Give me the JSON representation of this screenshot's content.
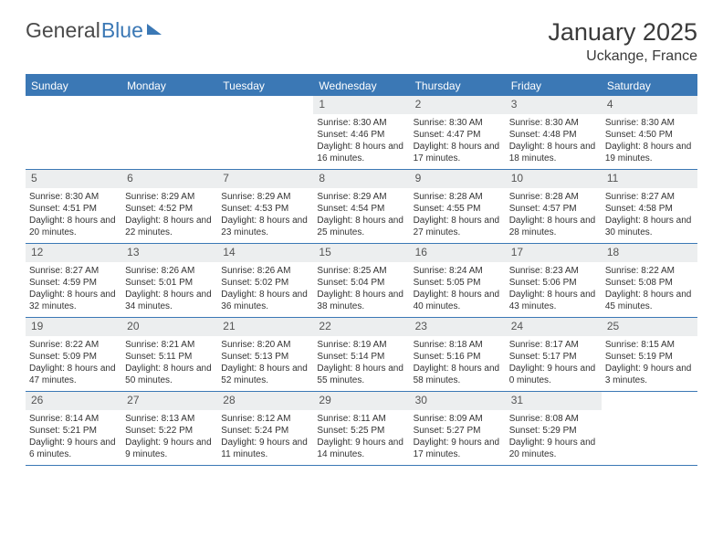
{
  "brand": {
    "part1": "General",
    "part2": "Blue"
  },
  "title": "January 2025",
  "location": "Uckange, France",
  "colors": {
    "accent": "#3b78b5",
    "header_bg": "#3b78b5",
    "header_text": "#ffffff",
    "daynum_bg": "#eceeef",
    "daynum_text": "#555555",
    "body_text": "#333333",
    "page_bg": "#ffffff"
  },
  "fonts": {
    "month_title_size": 27,
    "location_size": 16,
    "dayhead_size": 12,
    "daynum_size": 12,
    "cell_size": 10
  },
  "day_headers": [
    "Sunday",
    "Monday",
    "Tuesday",
    "Wednesday",
    "Thursday",
    "Friday",
    "Saturday"
  ],
  "weeks": [
    [
      {
        "n": "",
        "sunrise": "",
        "sunset": "",
        "daylight": ""
      },
      {
        "n": "",
        "sunrise": "",
        "sunset": "",
        "daylight": ""
      },
      {
        "n": "",
        "sunrise": "",
        "sunset": "",
        "daylight": ""
      },
      {
        "n": "1",
        "sunrise": "Sunrise: 8:30 AM",
        "sunset": "Sunset: 4:46 PM",
        "daylight": "Daylight: 8 hours and 16 minutes."
      },
      {
        "n": "2",
        "sunrise": "Sunrise: 8:30 AM",
        "sunset": "Sunset: 4:47 PM",
        "daylight": "Daylight: 8 hours and 17 minutes."
      },
      {
        "n": "3",
        "sunrise": "Sunrise: 8:30 AM",
        "sunset": "Sunset: 4:48 PM",
        "daylight": "Daylight: 8 hours and 18 minutes."
      },
      {
        "n": "4",
        "sunrise": "Sunrise: 8:30 AM",
        "sunset": "Sunset: 4:50 PM",
        "daylight": "Daylight: 8 hours and 19 minutes."
      }
    ],
    [
      {
        "n": "5",
        "sunrise": "Sunrise: 8:30 AM",
        "sunset": "Sunset: 4:51 PM",
        "daylight": "Daylight: 8 hours and 20 minutes."
      },
      {
        "n": "6",
        "sunrise": "Sunrise: 8:29 AM",
        "sunset": "Sunset: 4:52 PM",
        "daylight": "Daylight: 8 hours and 22 minutes."
      },
      {
        "n": "7",
        "sunrise": "Sunrise: 8:29 AM",
        "sunset": "Sunset: 4:53 PM",
        "daylight": "Daylight: 8 hours and 23 minutes."
      },
      {
        "n": "8",
        "sunrise": "Sunrise: 8:29 AM",
        "sunset": "Sunset: 4:54 PM",
        "daylight": "Daylight: 8 hours and 25 minutes."
      },
      {
        "n": "9",
        "sunrise": "Sunrise: 8:28 AM",
        "sunset": "Sunset: 4:55 PM",
        "daylight": "Daylight: 8 hours and 27 minutes."
      },
      {
        "n": "10",
        "sunrise": "Sunrise: 8:28 AM",
        "sunset": "Sunset: 4:57 PM",
        "daylight": "Daylight: 8 hours and 28 minutes."
      },
      {
        "n": "11",
        "sunrise": "Sunrise: 8:27 AM",
        "sunset": "Sunset: 4:58 PM",
        "daylight": "Daylight: 8 hours and 30 minutes."
      }
    ],
    [
      {
        "n": "12",
        "sunrise": "Sunrise: 8:27 AM",
        "sunset": "Sunset: 4:59 PM",
        "daylight": "Daylight: 8 hours and 32 minutes."
      },
      {
        "n": "13",
        "sunrise": "Sunrise: 8:26 AM",
        "sunset": "Sunset: 5:01 PM",
        "daylight": "Daylight: 8 hours and 34 minutes."
      },
      {
        "n": "14",
        "sunrise": "Sunrise: 8:26 AM",
        "sunset": "Sunset: 5:02 PM",
        "daylight": "Daylight: 8 hours and 36 minutes."
      },
      {
        "n": "15",
        "sunrise": "Sunrise: 8:25 AM",
        "sunset": "Sunset: 5:04 PM",
        "daylight": "Daylight: 8 hours and 38 minutes."
      },
      {
        "n": "16",
        "sunrise": "Sunrise: 8:24 AM",
        "sunset": "Sunset: 5:05 PM",
        "daylight": "Daylight: 8 hours and 40 minutes."
      },
      {
        "n": "17",
        "sunrise": "Sunrise: 8:23 AM",
        "sunset": "Sunset: 5:06 PM",
        "daylight": "Daylight: 8 hours and 43 minutes."
      },
      {
        "n": "18",
        "sunrise": "Sunrise: 8:22 AM",
        "sunset": "Sunset: 5:08 PM",
        "daylight": "Daylight: 8 hours and 45 minutes."
      }
    ],
    [
      {
        "n": "19",
        "sunrise": "Sunrise: 8:22 AM",
        "sunset": "Sunset: 5:09 PM",
        "daylight": "Daylight: 8 hours and 47 minutes."
      },
      {
        "n": "20",
        "sunrise": "Sunrise: 8:21 AM",
        "sunset": "Sunset: 5:11 PM",
        "daylight": "Daylight: 8 hours and 50 minutes."
      },
      {
        "n": "21",
        "sunrise": "Sunrise: 8:20 AM",
        "sunset": "Sunset: 5:13 PM",
        "daylight": "Daylight: 8 hours and 52 minutes."
      },
      {
        "n": "22",
        "sunrise": "Sunrise: 8:19 AM",
        "sunset": "Sunset: 5:14 PM",
        "daylight": "Daylight: 8 hours and 55 minutes."
      },
      {
        "n": "23",
        "sunrise": "Sunrise: 8:18 AM",
        "sunset": "Sunset: 5:16 PM",
        "daylight": "Daylight: 8 hours and 58 minutes."
      },
      {
        "n": "24",
        "sunrise": "Sunrise: 8:17 AM",
        "sunset": "Sunset: 5:17 PM",
        "daylight": "Daylight: 9 hours and 0 minutes."
      },
      {
        "n": "25",
        "sunrise": "Sunrise: 8:15 AM",
        "sunset": "Sunset: 5:19 PM",
        "daylight": "Daylight: 9 hours and 3 minutes."
      }
    ],
    [
      {
        "n": "26",
        "sunrise": "Sunrise: 8:14 AM",
        "sunset": "Sunset: 5:21 PM",
        "daylight": "Daylight: 9 hours and 6 minutes."
      },
      {
        "n": "27",
        "sunrise": "Sunrise: 8:13 AM",
        "sunset": "Sunset: 5:22 PM",
        "daylight": "Daylight: 9 hours and 9 minutes."
      },
      {
        "n": "28",
        "sunrise": "Sunrise: 8:12 AM",
        "sunset": "Sunset: 5:24 PM",
        "daylight": "Daylight: 9 hours and 11 minutes."
      },
      {
        "n": "29",
        "sunrise": "Sunrise: 8:11 AM",
        "sunset": "Sunset: 5:25 PM",
        "daylight": "Daylight: 9 hours and 14 minutes."
      },
      {
        "n": "30",
        "sunrise": "Sunrise: 8:09 AM",
        "sunset": "Sunset: 5:27 PM",
        "daylight": "Daylight: 9 hours and 17 minutes."
      },
      {
        "n": "31",
        "sunrise": "Sunrise: 8:08 AM",
        "sunset": "Sunset: 5:29 PM",
        "daylight": "Daylight: 9 hours and 20 minutes."
      },
      {
        "n": "",
        "sunrise": "",
        "sunset": "",
        "daylight": ""
      }
    ]
  ]
}
